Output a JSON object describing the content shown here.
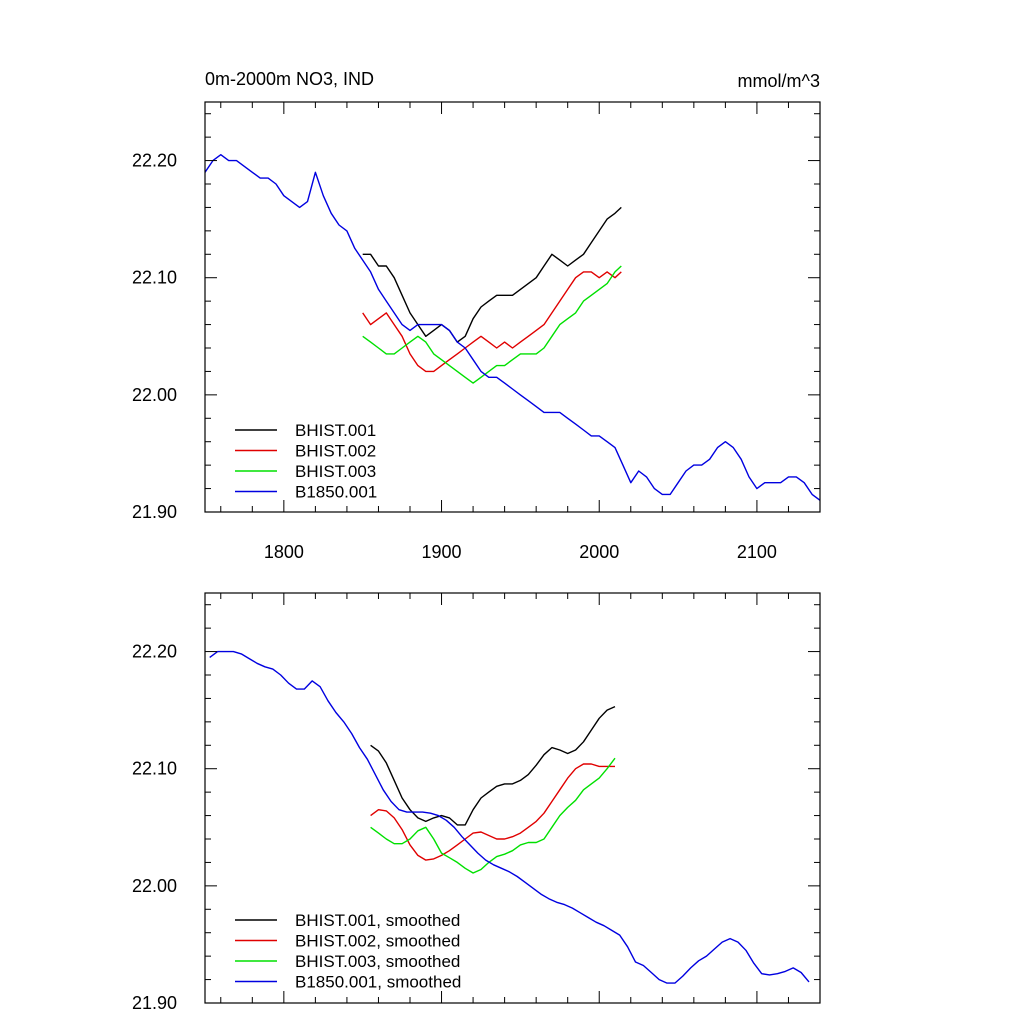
{
  "colors": {
    "BHIST.001": "#000000",
    "BHIST.002": "#e00000",
    "BHIST.003": "#00e000",
    "B1850.001": "#0000e0"
  },
  "chart_data": [
    {
      "type": "line",
      "title_left": "0m-2000m NO3, IND",
      "title_right": "mmol/m^3",
      "xlabel": "",
      "ylabel": "",
      "xlim": [
        1750,
        2140
      ],
      "ylim": [
        21.9,
        22.25
      ],
      "x_ticks": [
        1800,
        1900,
        2000,
        2100
      ],
      "x_tick_labels": [
        "1800",
        "1900",
        "2000",
        "2100"
      ],
      "y_ticks": [
        21.9,
        22.0,
        22.1,
        22.2
      ],
      "y_tick_labels": [
        "21.90",
        "22.00",
        "22.10",
        "22.20"
      ],
      "legend_position": "bottom-left",
      "legend": [
        "BHIST.001",
        "BHIST.002",
        "BHIST.003",
        "B1850.001"
      ],
      "series": [
        {
          "name": "BHIST.001",
          "x": [
            1850,
            1855,
            1860,
            1865,
            1870,
            1875,
            1880,
            1885,
            1890,
            1895,
            1900,
            1905,
            1910,
            1915,
            1920,
            1925,
            1930,
            1935,
            1940,
            1945,
            1950,
            1955,
            1960,
            1965,
            1970,
            1975,
            1980,
            1985,
            1990,
            1995,
            2000,
            2005,
            2010,
            2014
          ],
          "y": [
            22.12,
            22.12,
            22.11,
            22.11,
            22.1,
            22.085,
            22.07,
            22.06,
            22.05,
            22.055,
            22.06,
            22.055,
            22.045,
            22.05,
            22.065,
            22.075,
            22.08,
            22.085,
            22.085,
            22.085,
            22.09,
            22.095,
            22.1,
            22.11,
            22.12,
            22.115,
            22.11,
            22.115,
            22.12,
            22.13,
            22.14,
            22.15,
            22.155,
            22.16
          ]
        },
        {
          "name": "BHIST.002",
          "x": [
            1850,
            1855,
            1860,
            1865,
            1870,
            1875,
            1880,
            1885,
            1890,
            1895,
            1900,
            1905,
            1910,
            1915,
            1920,
            1925,
            1930,
            1935,
            1940,
            1945,
            1950,
            1955,
            1960,
            1965,
            1970,
            1975,
            1980,
            1985,
            1990,
            1995,
            2000,
            2005,
            2010,
            2014
          ],
          "y": [
            22.07,
            22.06,
            22.065,
            22.07,
            22.06,
            22.05,
            22.035,
            22.025,
            22.02,
            22.02,
            22.025,
            22.03,
            22.035,
            22.04,
            22.045,
            22.05,
            22.045,
            22.04,
            22.045,
            22.04,
            22.045,
            22.05,
            22.055,
            22.06,
            22.07,
            22.08,
            22.09,
            22.1,
            22.105,
            22.105,
            22.1,
            22.105,
            22.1,
            22.105
          ]
        },
        {
          "name": "BHIST.003",
          "x": [
            1850,
            1855,
            1860,
            1865,
            1870,
            1875,
            1880,
            1885,
            1890,
            1895,
            1900,
            1905,
            1910,
            1915,
            1920,
            1925,
            1930,
            1935,
            1940,
            1945,
            1950,
            1955,
            1960,
            1965,
            1970,
            1975,
            1980,
            1985,
            1990,
            1995,
            2000,
            2005,
            2010,
            2014
          ],
          "y": [
            22.05,
            22.045,
            22.04,
            22.035,
            22.035,
            22.04,
            22.045,
            22.05,
            22.045,
            22.035,
            22.03,
            22.025,
            22.02,
            22.015,
            22.01,
            22.015,
            22.02,
            22.025,
            22.025,
            22.03,
            22.035,
            22.035,
            22.035,
            22.04,
            22.05,
            22.06,
            22.065,
            22.07,
            22.08,
            22.085,
            22.09,
            22.095,
            22.105,
            22.11
          ]
        },
        {
          "name": "B1850.001",
          "x": [
            1750,
            1755,
            1760,
            1765,
            1770,
            1775,
            1780,
            1785,
            1790,
            1795,
            1800,
            1805,
            1810,
            1815,
            1820,
            1825,
            1830,
            1835,
            1840,
            1845,
            1850,
            1855,
            1860,
            1865,
            1870,
            1875,
            1880,
            1885,
            1890,
            1895,
            1900,
            1905,
            1910,
            1915,
            1920,
            1925,
            1930,
            1935,
            1940,
            1945,
            1950,
            1955,
            1960,
            1965,
            1970,
            1975,
            1980,
            1985,
            1990,
            1995,
            2000,
            2005,
            2010,
            2015,
            2020,
            2025,
            2030,
            2035,
            2040,
            2045,
            2050,
            2055,
            2060,
            2065,
            2070,
            2075,
            2080,
            2085,
            2090,
            2095,
            2100,
            2105,
            2110,
            2115,
            2120,
            2125,
            2130,
            2135,
            2140
          ],
          "y": [
            22.19,
            22.2,
            22.205,
            22.2,
            22.2,
            22.195,
            22.19,
            22.185,
            22.185,
            22.18,
            22.17,
            22.165,
            22.16,
            22.165,
            22.19,
            22.17,
            22.155,
            22.145,
            22.14,
            22.125,
            22.115,
            22.105,
            22.09,
            22.08,
            22.07,
            22.06,
            22.055,
            22.06,
            22.06,
            22.06,
            22.06,
            22.055,
            22.045,
            22.04,
            22.03,
            22.02,
            22.015,
            22.015,
            22.01,
            22.005,
            22.0,
            21.995,
            21.99,
            21.985,
            21.985,
            21.985,
            21.98,
            21.975,
            21.97,
            21.965,
            21.965,
            21.96,
            21.955,
            21.94,
            21.925,
            21.935,
            21.93,
            21.92,
            21.915,
            21.915,
            21.925,
            21.935,
            21.94,
            21.94,
            21.945,
            21.955,
            21.96,
            21.955,
            21.945,
            21.93,
            21.92,
            21.925,
            21.925,
            21.925,
            21.93,
            21.93,
            21.925,
            21.915,
            21.91
          ]
        }
      ]
    },
    {
      "type": "line",
      "title_left": "",
      "title_right": "",
      "xlabel": "",
      "ylabel": "",
      "xlim": [
        1750,
        2140
      ],
      "ylim": [
        21.9,
        22.25
      ],
      "x_ticks": [
        1800,
        1900,
        2000,
        2100
      ],
      "y_ticks": [
        21.9,
        22.0,
        22.1,
        22.2
      ],
      "y_tick_labels": [
        "21.90",
        "22.00",
        "22.10",
        "22.20"
      ],
      "legend_position": "bottom-left",
      "legend": [
        "BHIST.001, smoothed",
        "BHIST.002, smoothed",
        "BHIST.003, smoothed",
        "B1850.001, smoothed"
      ],
      "series": [
        {
          "name": "BHIST.001",
          "x": [
            1855,
            1860,
            1865,
            1870,
            1875,
            1880,
            1885,
            1890,
            1895,
            1900,
            1905,
            1910,
            1915,
            1920,
            1925,
            1930,
            1935,
            1940,
            1945,
            1950,
            1955,
            1960,
            1965,
            1970,
            1975,
            1980,
            1985,
            1990,
            1995,
            2000,
            2005,
            2010
          ],
          "y": [
            22.12,
            22.115,
            22.105,
            22.09,
            22.075,
            22.065,
            22.058,
            22.055,
            22.058,
            22.06,
            22.058,
            22.052,
            22.052,
            22.065,
            22.075,
            22.08,
            22.085,
            22.087,
            22.087,
            22.09,
            22.095,
            22.103,
            22.112,
            22.118,
            22.116,
            22.113,
            22.116,
            22.123,
            22.133,
            22.143,
            22.15,
            22.153
          ]
        },
        {
          "name": "BHIST.002",
          "x": [
            1855,
            1860,
            1865,
            1870,
            1875,
            1880,
            1885,
            1890,
            1895,
            1900,
            1905,
            1910,
            1915,
            1920,
            1925,
            1930,
            1935,
            1940,
            1945,
            1950,
            1955,
            1960,
            1965,
            1970,
            1975,
            1980,
            1985,
            1990,
            1995,
            2000,
            2005,
            2010
          ],
          "y": [
            22.06,
            22.065,
            22.064,
            22.058,
            22.048,
            22.035,
            22.026,
            22.022,
            22.023,
            22.026,
            22.03,
            22.035,
            22.04,
            22.045,
            22.046,
            22.043,
            22.04,
            22.04,
            22.042,
            22.045,
            22.05,
            22.055,
            22.062,
            22.072,
            22.082,
            22.092,
            22.1,
            22.104,
            22.104,
            22.102,
            22.102,
            22.102
          ]
        },
        {
          "name": "BHIST.003",
          "x": [
            1855,
            1860,
            1865,
            1870,
            1875,
            1880,
            1885,
            1890,
            1895,
            1900,
            1905,
            1910,
            1915,
            1920,
            1925,
            1930,
            1935,
            1940,
            1945,
            1950,
            1955,
            1960,
            1965,
            1970,
            1975,
            1980,
            1985,
            1990,
            1995,
            2000,
            2005,
            2010
          ],
          "y": [
            22.05,
            22.045,
            22.04,
            22.036,
            22.036,
            22.04,
            22.047,
            22.05,
            22.04,
            22.028,
            22.024,
            22.02,
            22.015,
            22.011,
            22.014,
            22.02,
            22.025,
            22.027,
            22.03,
            22.035,
            22.037,
            22.037,
            22.04,
            22.05,
            22.06,
            22.067,
            22.073,
            22.082,
            22.087,
            22.092,
            22.1,
            22.109
          ]
        },
        {
          "name": "B1850.001",
          "x": [
            1753,
            1758,
            1763,
            1768,
            1773,
            1778,
            1783,
            1788,
            1793,
            1798,
            1803,
            1808,
            1813,
            1818,
            1823,
            1828,
            1833,
            1838,
            1843,
            1848,
            1853,
            1858,
            1863,
            1868,
            1873,
            1878,
            1883,
            1888,
            1893,
            1898,
            1903,
            1908,
            1913,
            1918,
            1923,
            1928,
            1933,
            1938,
            1943,
            1948,
            1953,
            1958,
            1963,
            1968,
            1973,
            1978,
            1983,
            1988,
            1993,
            1998,
            2003,
            2008,
            2013,
            2018,
            2023,
            2028,
            2033,
            2038,
            2043,
            2048,
            2053,
            2058,
            2063,
            2068,
            2073,
            2078,
            2083,
            2088,
            2093,
            2098,
            2103,
            2108,
            2113,
            2118,
            2123,
            2128,
            2133
          ],
          "y": [
            22.195,
            22.2,
            22.2,
            22.2,
            22.198,
            22.194,
            22.19,
            22.187,
            22.185,
            22.18,
            22.173,
            22.168,
            22.168,
            22.175,
            22.17,
            22.158,
            22.148,
            22.14,
            22.13,
            22.118,
            22.108,
            22.095,
            22.082,
            22.072,
            22.065,
            22.063,
            22.063,
            22.063,
            22.062,
            22.06,
            22.056,
            22.05,
            22.042,
            22.035,
            22.028,
            22.022,
            22.018,
            22.015,
            22.012,
            22.008,
            22.003,
            21.998,
            21.993,
            21.989,
            21.986,
            21.984,
            21.981,
            21.977,
            21.973,
            21.969,
            21.966,
            21.962,
            21.958,
            21.948,
            21.935,
            21.932,
            21.926,
            21.92,
            21.917,
            21.917,
            21.923,
            21.93,
            21.936,
            21.94,
            21.946,
            21.952,
            21.955,
            21.952,
            21.945,
            21.934,
            21.925,
            21.924,
            21.925,
            21.927,
            21.93,
            21.926,
            21.918
          ]
        }
      ]
    }
  ]
}
